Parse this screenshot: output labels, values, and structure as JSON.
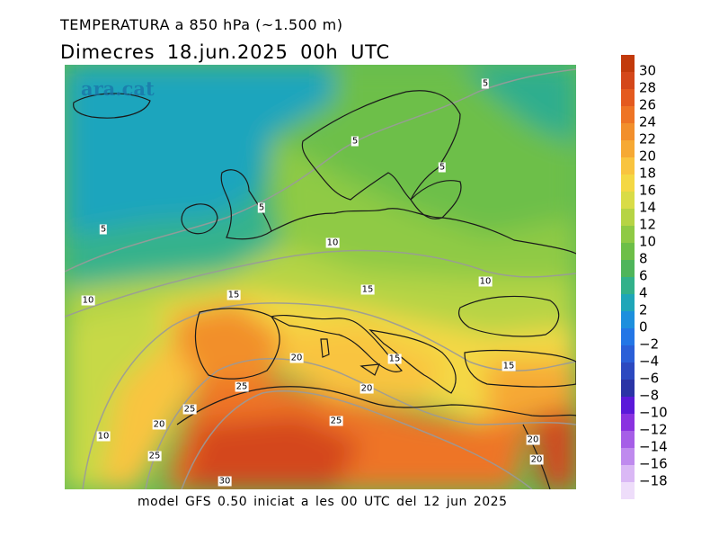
{
  "header": {
    "title": "TEMPERATURA a 850 hPa (~1.500 m)",
    "subtitle": "Dimecres  18.jun.2025 00h UTC"
  },
  "footer": {
    "text": "model GFS 0.50 iniciat a les 00 UTC del 12 jun 2025"
  },
  "map": {
    "logo": "ara.cat",
    "isotherm_labels": [
      "5",
      "5",
      "5",
      "5",
      "5",
      "10",
      "10",
      "10",
      "10",
      "15",
      "15",
      "15",
      "15",
      "20",
      "20",
      "20",
      "20",
      "20",
      "25",
      "25",
      "25",
      "25",
      "30"
    ]
  },
  "legend": {
    "labels": [
      "30",
      "28",
      "26",
      "24",
      "22",
      "20",
      "18",
      "16",
      "14",
      "12",
      "10",
      "8",
      "6",
      "4",
      "2",
      "0",
      "−2",
      "−4",
      "−6",
      "−8",
      "−10",
      "−12",
      "−14",
      "−16",
      "−18"
    ],
    "colors": [
      "#c23a0b",
      "#d4471a",
      "#e45a1f",
      "#ee7425",
      "#f28f2c",
      "#f6a934",
      "#f9c43f",
      "#f4d844",
      "#d9dc47",
      "#b6d445",
      "#8fca45",
      "#6dbf48",
      "#4fb55a",
      "#32b18a",
      "#1fa6b8",
      "#1d8fdd",
      "#2376e6",
      "#2a5fd8",
      "#2c49c0",
      "#2a34a6",
      "#5a19d9",
      "#8a33e0",
      "#a65ee7",
      "#bf8aee",
      "#dab8f5",
      "#eeddfa"
    ]
  }
}
